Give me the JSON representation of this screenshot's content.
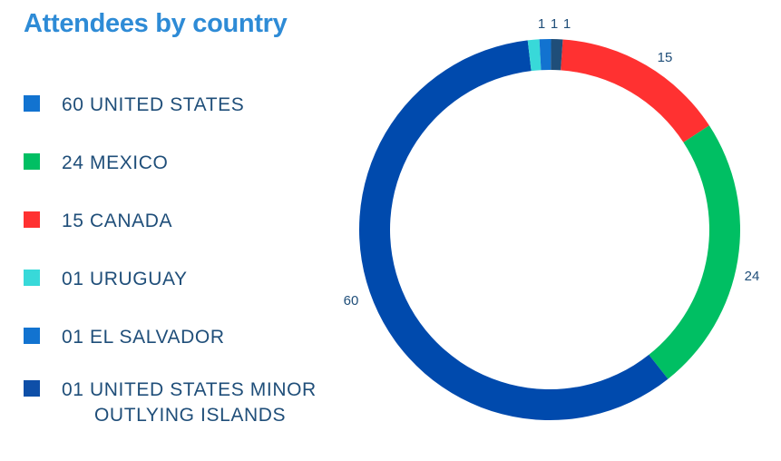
{
  "title": "Attendees by country",
  "legend": [
    {
      "label": "60 UNITED STATES",
      "color": "#1273D0"
    },
    {
      "label": "24 MEXICO",
      "color": "#00BF63"
    },
    {
      "label": "15 CANADA",
      "color": "#FF3131"
    },
    {
      "label": "01 URUGUAY",
      "color": "#38D9D9"
    },
    {
      "label": "01 EL SALVADOR",
      "color": "#1273D0"
    },
    {
      "label": "01 UNITED STATES MINOR OUTLYING ISLANDS",
      "color": "#0E4FA8"
    }
  ],
  "chart_data": {
    "type": "pie",
    "variant": "donut",
    "title": "Attendees by country",
    "slices": [
      {
        "label": "UNITED STATES",
        "value": 60,
        "color": "#004AAD"
      },
      {
        "label": "MEXICO",
        "value": 24,
        "color": "#00BF63"
      },
      {
        "label": "CANADA",
        "value": 15,
        "color": "#FF3131"
      },
      {
        "label": "URUGUAY",
        "value": 1,
        "color": "#38D9D9"
      },
      {
        "label": "EL SALVADOR",
        "value": 1,
        "color": "#1273D0"
      },
      {
        "label": "UNITED STATES MINOR OUTLYING ISLANDS",
        "value": 1,
        "color": "#1F4E79"
      }
    ],
    "data_labels": [
      "60",
      "24",
      "15",
      "1",
      "1",
      "1"
    ],
    "legend_position": "left"
  }
}
